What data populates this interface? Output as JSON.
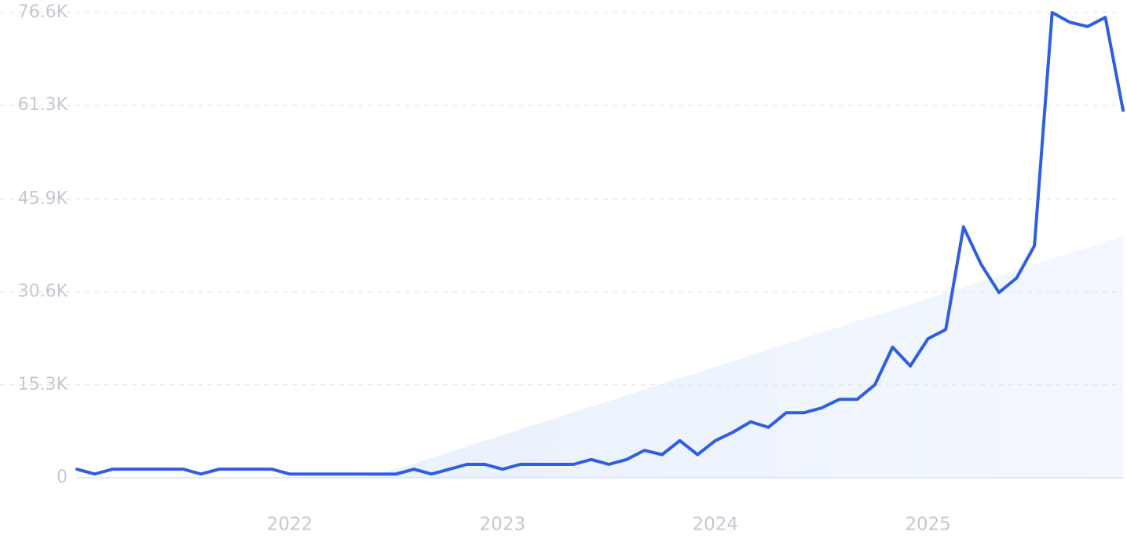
{
  "chart_data": {
    "type": "line",
    "categories": [
      null,
      null,
      null,
      null,
      null,
      null,
      null,
      null,
      null,
      null,
      null,
      null,
      "2022",
      null,
      null,
      null,
      null,
      null,
      null,
      null,
      null,
      null,
      null,
      null,
      "2023",
      null,
      null,
      null,
      null,
      null,
      null,
      null,
      null,
      null,
      null,
      null,
      "2024",
      null,
      null,
      null,
      null,
      null,
      null,
      null,
      null,
      null,
      null,
      null,
      "2025",
      null,
      null,
      null,
      null,
      null,
      null,
      null,
      null,
      null,
      null,
      null
    ],
    "series": [
      {
        "color": "#2f5fe0",
        "values": [
          1400,
          600,
          1400,
          1400,
          1400,
          1400,
          1400,
          600,
          1400,
          1400,
          1400,
          1400,
          600,
          600,
          600,
          600,
          600,
          600,
          600,
          1400,
          600,
          1400,
          2200,
          2200,
          1400,
          2200,
          2200,
          2200,
          2200,
          3000,
          2200,
          3000,
          4500,
          3800,
          6100,
          3800,
          6100,
          7500,
          9200,
          8300,
          10700,
          10700,
          11500,
          12900,
          12900,
          15300,
          21500,
          18400,
          22900,
          24400,
          41300,
          35100,
          30500,
          32900,
          38200,
          76600,
          75000,
          74300,
          75800,
          60500
        ]
      },
      {
        "color": "#e3eefc",
        "values": [
          0,
          0,
          0,
          0,
          0,
          0,
          0,
          0,
          0,
          0,
          0,
          0,
          0,
          0,
          0,
          0,
          0,
          500,
          1400,
          2300,
          3300,
          4200,
          5200,
          6100,
          7000,
          8000,
          8900,
          9800,
          10800,
          11700,
          12600,
          13600,
          14500,
          15500,
          16400,
          17300,
          18300,
          19200,
          20100,
          21100,
          22000,
          23000,
          23900,
          24800,
          25800,
          26700,
          27600,
          28600,
          29500,
          30500,
          31400,
          32300,
          33300,
          34200,
          35100,
          36100,
          37000,
          37900,
          38900,
          39800
        ]
      }
    ],
    "ylim": [
      0,
      76600
    ],
    "yticks": [
      0,
      {
        "value": 15300,
        "label": "15.3K"
      },
      {
        "value": 30600,
        "label": "30.6K"
      },
      {
        "value": 45900,
        "label": "45.9K"
      },
      {
        "value": 61300,
        "label": "61.3K"
      },
      {
        "value": 76600,
        "label": "76.6K"
      }
    ],
    "grid": true
  }
}
